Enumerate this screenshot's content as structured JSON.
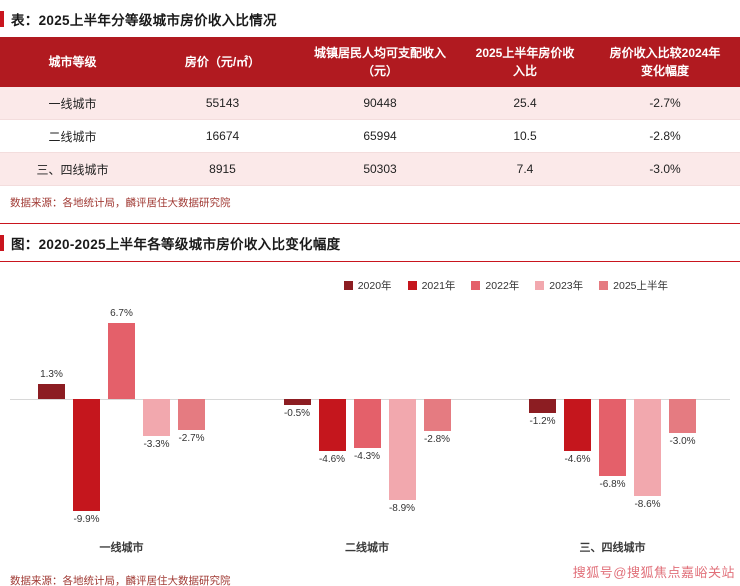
{
  "table_section": {
    "title": "表：2025上半年分等级城市房价收入比情况",
    "columns": [
      "城市等级",
      "房价（元/㎡）",
      "城镇居民人均可支配收入（元）",
      "2025上半年房价收入比",
      "房价收入比较2024年变化幅度"
    ],
    "rows": [
      [
        "一线城市",
        "55143",
        "90448",
        "25.4",
        "-2.7%"
      ],
      [
        "二线城市",
        "16674",
        "65994",
        "10.5",
        "-2.8%"
      ],
      [
        "三、四线城市",
        "8915",
        "50303",
        "7.4",
        "-3.0%"
      ]
    ],
    "source": "数据来源：各地统计局，麟评居住大数据研究院"
  },
  "chart_section": {
    "title": "图：2020-2025上半年各等级城市房价收入比变化幅度",
    "source": "数据来源：各地统计局，麟评居住大数据研究院"
  },
  "chart_data": {
    "type": "bar",
    "title": "2020-2025上半年各等级城市房价收入比变化幅度",
    "categories": [
      "一线城市",
      "二线城市",
      "三、四线城市"
    ],
    "series": [
      {
        "name": "2020年",
        "color": "#8C1D22",
        "values": [
          1.3,
          -0.5,
          -1.2
        ]
      },
      {
        "name": "2021年",
        "color": "#C5161D",
        "values": [
          -9.9,
          -4.6,
          -4.6
        ]
      },
      {
        "name": "2022年",
        "color": "#E4606A",
        "values": [
          6.7,
          -4.3,
          -6.8
        ]
      },
      {
        "name": "2023年",
        "color": "#F2A8AE",
        "values": [
          -3.3,
          -8.9,
          -8.6
        ]
      },
      {
        "name": "2025上半年",
        "color": "#E57B81",
        "values": [
          -2.7,
          -2.8,
          -3.0
        ]
      }
    ],
    "value_suffix": "%",
    "xlabel": "",
    "ylabel": "",
    "ylim": [
      -11,
      8
    ],
    "grid": false,
    "legend_position": "top-right"
  },
  "watermark": "搜狐号@搜狐焦点嘉峪关站",
  "colors": {
    "header_bg": "#B11A20",
    "row_alt_bg": "#FBE9E9",
    "accent": "#C9151E",
    "source_text": "#A13B35",
    "watermark_color": "#E1707A"
  }
}
